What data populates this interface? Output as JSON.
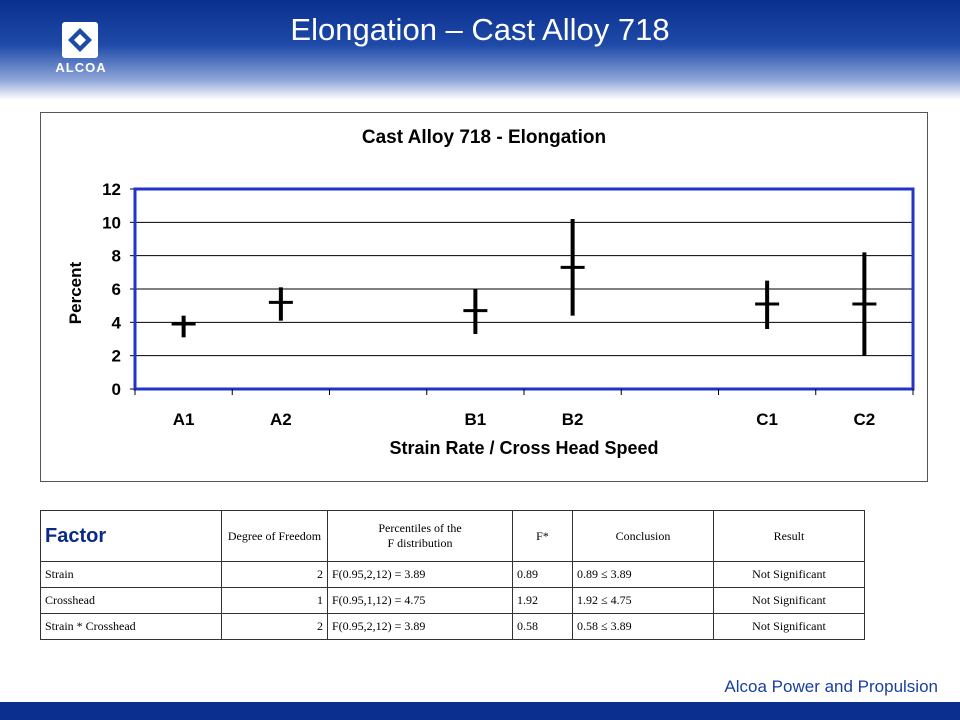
{
  "header": {
    "title": "Elongation – Cast Alloy 718"
  },
  "logo": {
    "text": "ALCOA"
  },
  "chart_data": {
    "type": "scatter",
    "title": "Cast Alloy 718 - Elongation",
    "xlabel": "Strain Rate / Cross Head Speed",
    "ylabel": "Percent",
    "categories": [
      "A1",
      "A2",
      "",
      "B1",
      "B2",
      "",
      "C1",
      "C2"
    ],
    "yticks": [
      "0",
      "2",
      "4",
      "6",
      "8",
      "10",
      "12"
    ],
    "ylim": [
      0,
      12
    ],
    "grid": true,
    "series": [
      {
        "points": [
          {
            "category": "A1",
            "mean": 3.9,
            "low": 3.1,
            "high": 4.4
          },
          {
            "category": "A2",
            "mean": 5.2,
            "low": 4.1,
            "high": 6.1
          },
          {
            "category": "B1",
            "mean": 4.7,
            "low": 3.3,
            "high": 6.0
          },
          {
            "category": "B2",
            "mean": 7.3,
            "low": 4.4,
            "high": 10.2
          },
          {
            "category": "C1",
            "mean": 5.1,
            "low": 3.6,
            "high": 6.5
          },
          {
            "category": "C2",
            "mean": 5.1,
            "low": 2.0,
            "high": 8.2
          }
        ]
      }
    ]
  },
  "table": {
    "headers": [
      "Factor",
      "Degree of Freedom",
      "Percentiles of the",
      "F distribution",
      "F*",
      "Conclusion",
      "Result"
    ],
    "rows": [
      [
        "Strain",
        "2",
        "F(0.95,2,12) = 3.89",
        "0.89",
        "0.89 ≤ 3.89",
        "Not Significant"
      ],
      [
        "Crosshead",
        "1",
        "F(0.95,1,12) = 4.75",
        "1.92",
        "1.92 ≤ 4.75",
        "Not Significant"
      ],
      [
        "Strain * Crosshead",
        "2",
        "F(0.95,2,12) = 3.89",
        "0.58",
        "0.58 ≤ 3.89",
        "Not Significant"
      ]
    ]
  },
  "footer": {
    "text": "Alcoa Power and Propulsion"
  },
  "colors": {
    "brand_blue": "#0b2f8f",
    "plot_border": "#2233cc"
  }
}
